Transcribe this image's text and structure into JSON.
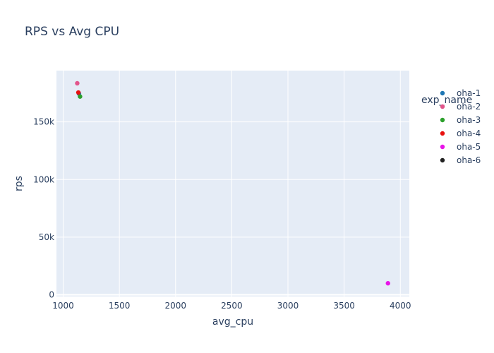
{
  "chart_data": {
    "type": "scatter",
    "title": "RPS vs Avg CPU",
    "xlabel": "avg_cpu",
    "ylabel": "rps",
    "xlim": [
      940,
      4080
    ],
    "ylim": [
      -1500,
      194500
    ],
    "x_ticks": [
      1000,
      1500,
      2000,
      2500,
      3000,
      3500,
      4000
    ],
    "x_tick_labels": [
      "1000",
      "1500",
      "2000",
      "2500",
      "3000",
      "3500",
      "4000"
    ],
    "y_ticks": [
      0,
      50000,
      100000,
      150000
    ],
    "y_tick_labels": [
      "0",
      "50k",
      "100k",
      "150k"
    ],
    "grid": true,
    "legend_title": "exp_name",
    "legend_position": "right",
    "series": [
      {
        "name": "oha-1",
        "color": "#1f77b4",
        "points": [
          {
            "x": 1140,
            "y": 174500
          }
        ]
      },
      {
        "name": "oha-2",
        "color": "#e2558b",
        "points": [
          {
            "x": 1125,
            "y": 183500
          }
        ]
      },
      {
        "name": "oha-3",
        "color": "#2ca02c",
        "points": [
          {
            "x": 1150,
            "y": 172000
          }
        ]
      },
      {
        "name": "oha-4",
        "color": "#e8110f",
        "points": [
          {
            "x": 1135,
            "y": 175500
          }
        ]
      },
      {
        "name": "oha-5",
        "color": "#e815e8",
        "points": [
          {
            "x": 3890,
            "y": 10000
          }
        ]
      },
      {
        "name": "oha-6",
        "color": "#222222",
        "points": []
      }
    ],
    "plot_bg": "#e5ecf6",
    "grid_color": "#ffffff",
    "text_color": "#2a3f5f"
  }
}
